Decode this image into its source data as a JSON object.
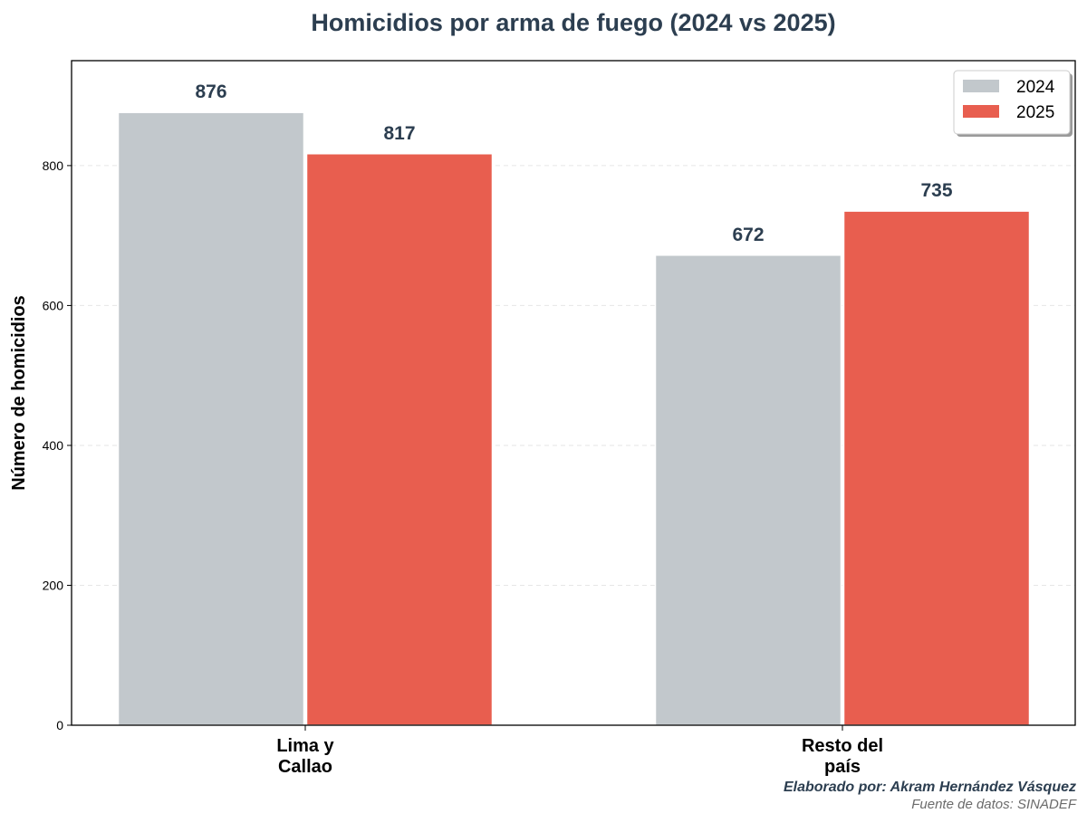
{
  "chart_data": {
    "type": "bar",
    "title": "Homicidios por arma de fuego (2024 vs 2025)",
    "xlabel": "",
    "ylabel": "Número de homicidios",
    "categories": [
      "Lima y\nCallao",
      "Resto del\npaís"
    ],
    "series": [
      {
        "name": "2024",
        "values": [
          876,
          672
        ],
        "color": "#c2c8cc"
      },
      {
        "name": "2025",
        "values": [
          817,
          735
        ],
        "color": "#e85e4f"
      }
    ],
    "ylim": [
      0,
      950
    ],
    "yticks": [
      0,
      200,
      400,
      600,
      800
    ],
    "grid": "y, dashed",
    "legend_position": "top-right",
    "data_labels": true
  },
  "footer": {
    "credit": "Elaborado por: Akram Hernández Vásquez",
    "source": "Fuente de datos: SINADEF"
  }
}
